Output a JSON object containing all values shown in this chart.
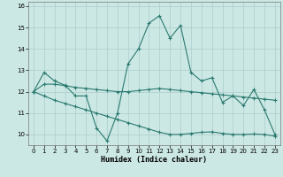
{
  "xlabel": "Humidex (Indice chaleur)",
  "bg_color": "#cce8e4",
  "line_color": "#2a7a70",
  "grid_color": "#aacccc",
  "xlim": [
    -0.5,
    23.5
  ],
  "ylim": [
    9.5,
    16.2
  ],
  "yticks": [
    10,
    11,
    12,
    13,
    14,
    15,
    16
  ],
  "xticks": [
    0,
    1,
    2,
    3,
    4,
    5,
    6,
    7,
    8,
    9,
    10,
    11,
    12,
    13,
    14,
    15,
    16,
    17,
    18,
    19,
    20,
    21,
    22,
    23
  ],
  "line1_x": [
    0,
    1,
    2,
    3,
    4,
    5,
    6,
    7,
    8,
    9,
    10,
    11,
    12,
    13,
    14,
    15,
    16,
    17,
    18,
    19,
    20,
    21,
    22,
    23
  ],
  "line1_y": [
    12.0,
    12.9,
    12.5,
    12.3,
    11.8,
    11.8,
    10.3,
    9.7,
    11.0,
    13.3,
    14.0,
    15.2,
    15.55,
    14.5,
    15.1,
    12.9,
    12.5,
    12.65,
    11.5,
    11.8,
    11.35,
    12.1,
    11.15,
    10.0
  ],
  "line2_x": [
    0,
    1,
    2,
    3,
    4,
    5,
    6,
    7,
    8,
    9,
    10,
    11,
    12,
    13,
    14,
    15,
    16,
    17,
    18,
    19,
    20,
    21,
    22,
    23
  ],
  "line2_y": [
    12.0,
    12.35,
    12.35,
    12.28,
    12.2,
    12.15,
    12.1,
    12.05,
    12.0,
    12.0,
    12.05,
    12.1,
    12.15,
    12.1,
    12.05,
    12.0,
    11.95,
    11.9,
    11.85,
    11.8,
    11.75,
    11.7,
    11.65,
    11.6
  ],
  "line3_x": [
    0,
    1,
    2,
    3,
    4,
    5,
    6,
    7,
    8,
    9,
    10,
    11,
    12,
    13,
    14,
    15,
    16,
    17,
    18,
    19,
    20,
    21,
    22,
    23
  ],
  "line3_y": [
    12.0,
    11.8,
    11.6,
    11.45,
    11.3,
    11.15,
    11.0,
    10.85,
    10.7,
    10.55,
    10.4,
    10.25,
    10.1,
    10.0,
    10.0,
    10.05,
    10.1,
    10.12,
    10.05,
    10.0,
    10.0,
    10.02,
    10.0,
    9.92
  ],
  "markersize": 3.5,
  "linewidth": 0.8
}
